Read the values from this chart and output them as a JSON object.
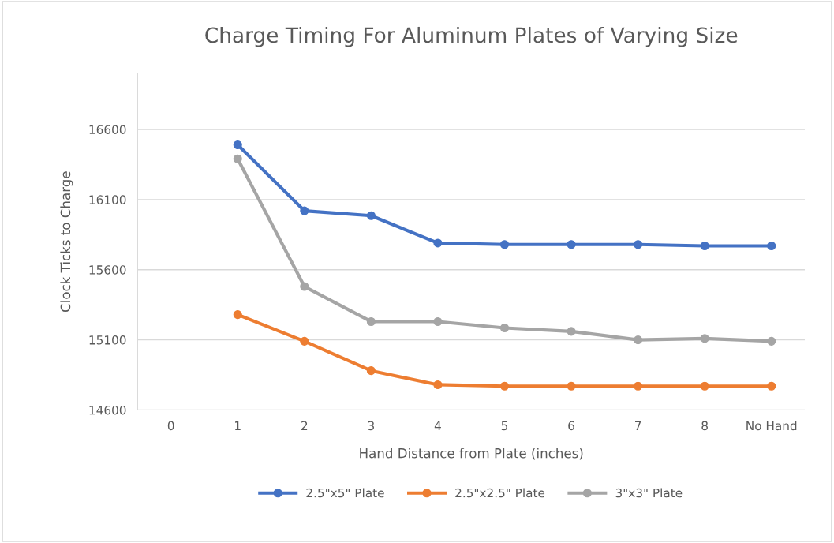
{
  "chart_data": {
    "type": "line",
    "title": "Charge Timing For Aluminum Plates of Varying Size",
    "xlabel": "Hand Distance from Plate (inches)",
    "ylabel": "Clock Ticks to Charge",
    "categories": [
      "0",
      "1",
      "2",
      "3",
      "4",
      "5",
      "6",
      "7",
      "8",
      "No Hand"
    ],
    "series": [
      {
        "name": "2.5\"x5\" Plate",
        "color": "#4472c4",
        "values": [
          null,
          16490,
          16020,
          15985,
          15790,
          15780,
          15780,
          15780,
          15770,
          15770
        ]
      },
      {
        "name": "2.5\"x2.5\" Plate",
        "color": "#ed7d31",
        "values": [
          null,
          15280,
          15090,
          14880,
          14780,
          14770,
          14770,
          14770,
          14770,
          14770
        ]
      },
      {
        "name": "3\"x3\" Plate",
        "color": "#a5a5a5",
        "values": [
          null,
          16390,
          15480,
          15230,
          15230,
          15185,
          15160,
          15100,
          15110,
          15090
        ]
      }
    ],
    "ylim": [
      14600,
      17000
    ],
    "yticks": [
      14600,
      15100,
      15600,
      16100,
      16600
    ],
    "grid": "y",
    "legend": "bottom",
    "marker": "circle",
    "line_style": "solid"
  }
}
